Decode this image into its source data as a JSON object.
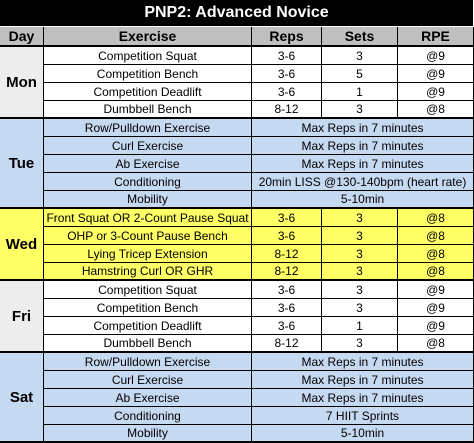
{
  "title": "PNP2: Advanced Novice",
  "header": [
    "Day",
    "Exercise",
    "Reps",
    "Sets",
    "RPE"
  ],
  "groups": [
    {
      "day": "Mon",
      "rows": [
        [
          "Competition Squat",
          "3-6",
          "3",
          "@9"
        ],
        [
          "Competition Bench",
          "3-6",
          "5",
          "@9"
        ],
        [
          "Competition Deadlift",
          "3-6",
          "1",
          "@9"
        ],
        [
          "Dumbbell Bench",
          "8-12",
          "3",
          "@8"
        ]
      ]
    },
    {
      "day": "Tue",
      "rows": [
        [
          "Row/Pulldown Exercise",
          "Max Reps in 7 minutes"
        ],
        [
          "Curl Exercise",
          "Max Reps in 7 minutes"
        ],
        [
          "Ab Exercise",
          "Max Reps in 7 minutes"
        ],
        [
          "Conditioning",
          "20min LISS @130-140bpm (heart rate)"
        ],
        [
          "Mobility",
          "5-10min"
        ]
      ]
    },
    {
      "day": "Wed",
      "rows": [
        [
          "Front Squat OR 2-Count Pause Squat",
          "3-6",
          "3",
          "@8"
        ],
        [
          "OHP or 3-Count Pause Bench",
          "3-6",
          "3",
          "@8"
        ],
        [
          "Lying Tricep Extension",
          "8-12",
          "3",
          "@8"
        ],
        [
          "Hamstring Curl OR GHR",
          "8-12",
          "3",
          "@8"
        ]
      ]
    },
    {
      "day": "Fri",
      "rows": [
        [
          "Competition Squat",
          "3-6",
          "3",
          "@9"
        ],
        [
          "Competition Bench",
          "3-6",
          "3",
          "@9"
        ],
        [
          "Competition Deadlift",
          "3-6",
          "1",
          "@9"
        ],
        [
          "Dumbbell Bench",
          "8-12",
          "3",
          "@8"
        ]
      ]
    },
    {
      "day": "Sat",
      "rows": [
        [
          "Row/Pulldown Exercise",
          "Max Reps in 7 minutes"
        ],
        [
          "Curl Exercise",
          "Max Reps in 7 minutes"
        ],
        [
          "Ab Exercise",
          "Max Reps in 7 minutes"
        ],
        [
          "Conditioning",
          "7 HIIT Sprints"
        ],
        [
          "Mobility",
          "5-10min"
        ]
      ]
    }
  ]
}
